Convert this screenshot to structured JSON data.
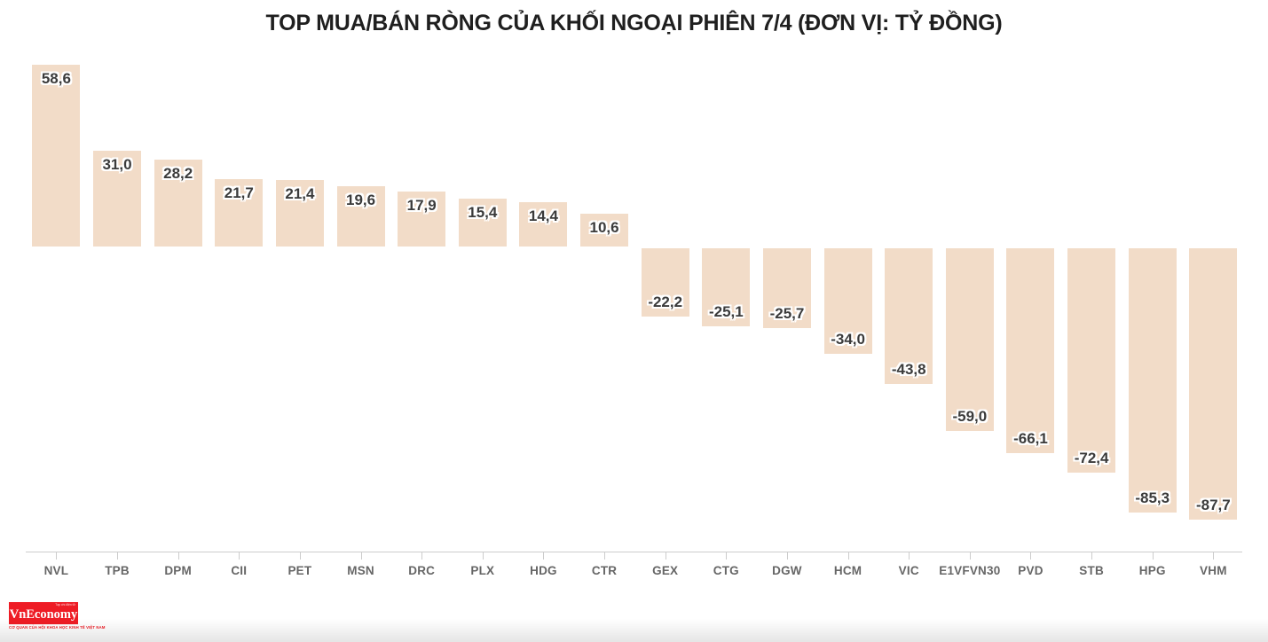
{
  "chart_data": {
    "type": "bar",
    "title": "TOP MUA/BÁN RÒNG CỦA KHỐI NGOẠI PHIÊN 7/4 (ĐƠN VỊ: TỶ ĐỒNG)",
    "categories": [
      "NVL",
      "TPB",
      "DPM",
      "CII",
      "PET",
      "MSN",
      "DRC",
      "PLX",
      "HDG",
      "CTR",
      "GEX",
      "CTG",
      "DGW",
      "HCM",
      "VIC",
      "E1VFVN30",
      "PVD",
      "STB",
      "HPG",
      "VHM"
    ],
    "values": [
      58.6,
      31.0,
      28.2,
      21.7,
      21.4,
      19.6,
      17.9,
      15.4,
      14.4,
      10.6,
      -22.2,
      -25.1,
      -25.7,
      -34.0,
      -43.8,
      -59.0,
      -66.1,
      -72.4,
      -85.3,
      -87.7
    ],
    "value_labels": [
      "58,6",
      "31,0",
      "28,2",
      "21,7",
      "21,4",
      "19,6",
      "17,9",
      "15,4",
      "14,4",
      "10,6",
      "-22,2",
      "-25,1",
      "-25,7",
      "-34,0",
      "-43,8",
      "-59,0",
      "-66,1",
      "-72,4",
      "-85,3",
      "-87,7"
    ],
    "xlabel": "",
    "ylabel": "",
    "ylim": [
      -90,
      60
    ],
    "grid": false,
    "legend": "none",
    "value_label_position": "inside-end",
    "x_ticks": "at-category-centers",
    "decimal_separator": ",",
    "colors": {
      "bar": "#f2dcc8",
      "value_label": "#3b3b3b",
      "axis_label": "#666666",
      "axis_line": "#cccccc",
      "title": "#1f1f1f"
    }
  },
  "branding": {
    "logo_text": "VnEconomy",
    "logo_top_text": "Tạp chí điện tử",
    "tagline": "CƠ QUAN CỦA HỘI KHOA HỌC KINH TẾ VIỆT NAM",
    "logo_bg_color": "#ee1c25"
  }
}
